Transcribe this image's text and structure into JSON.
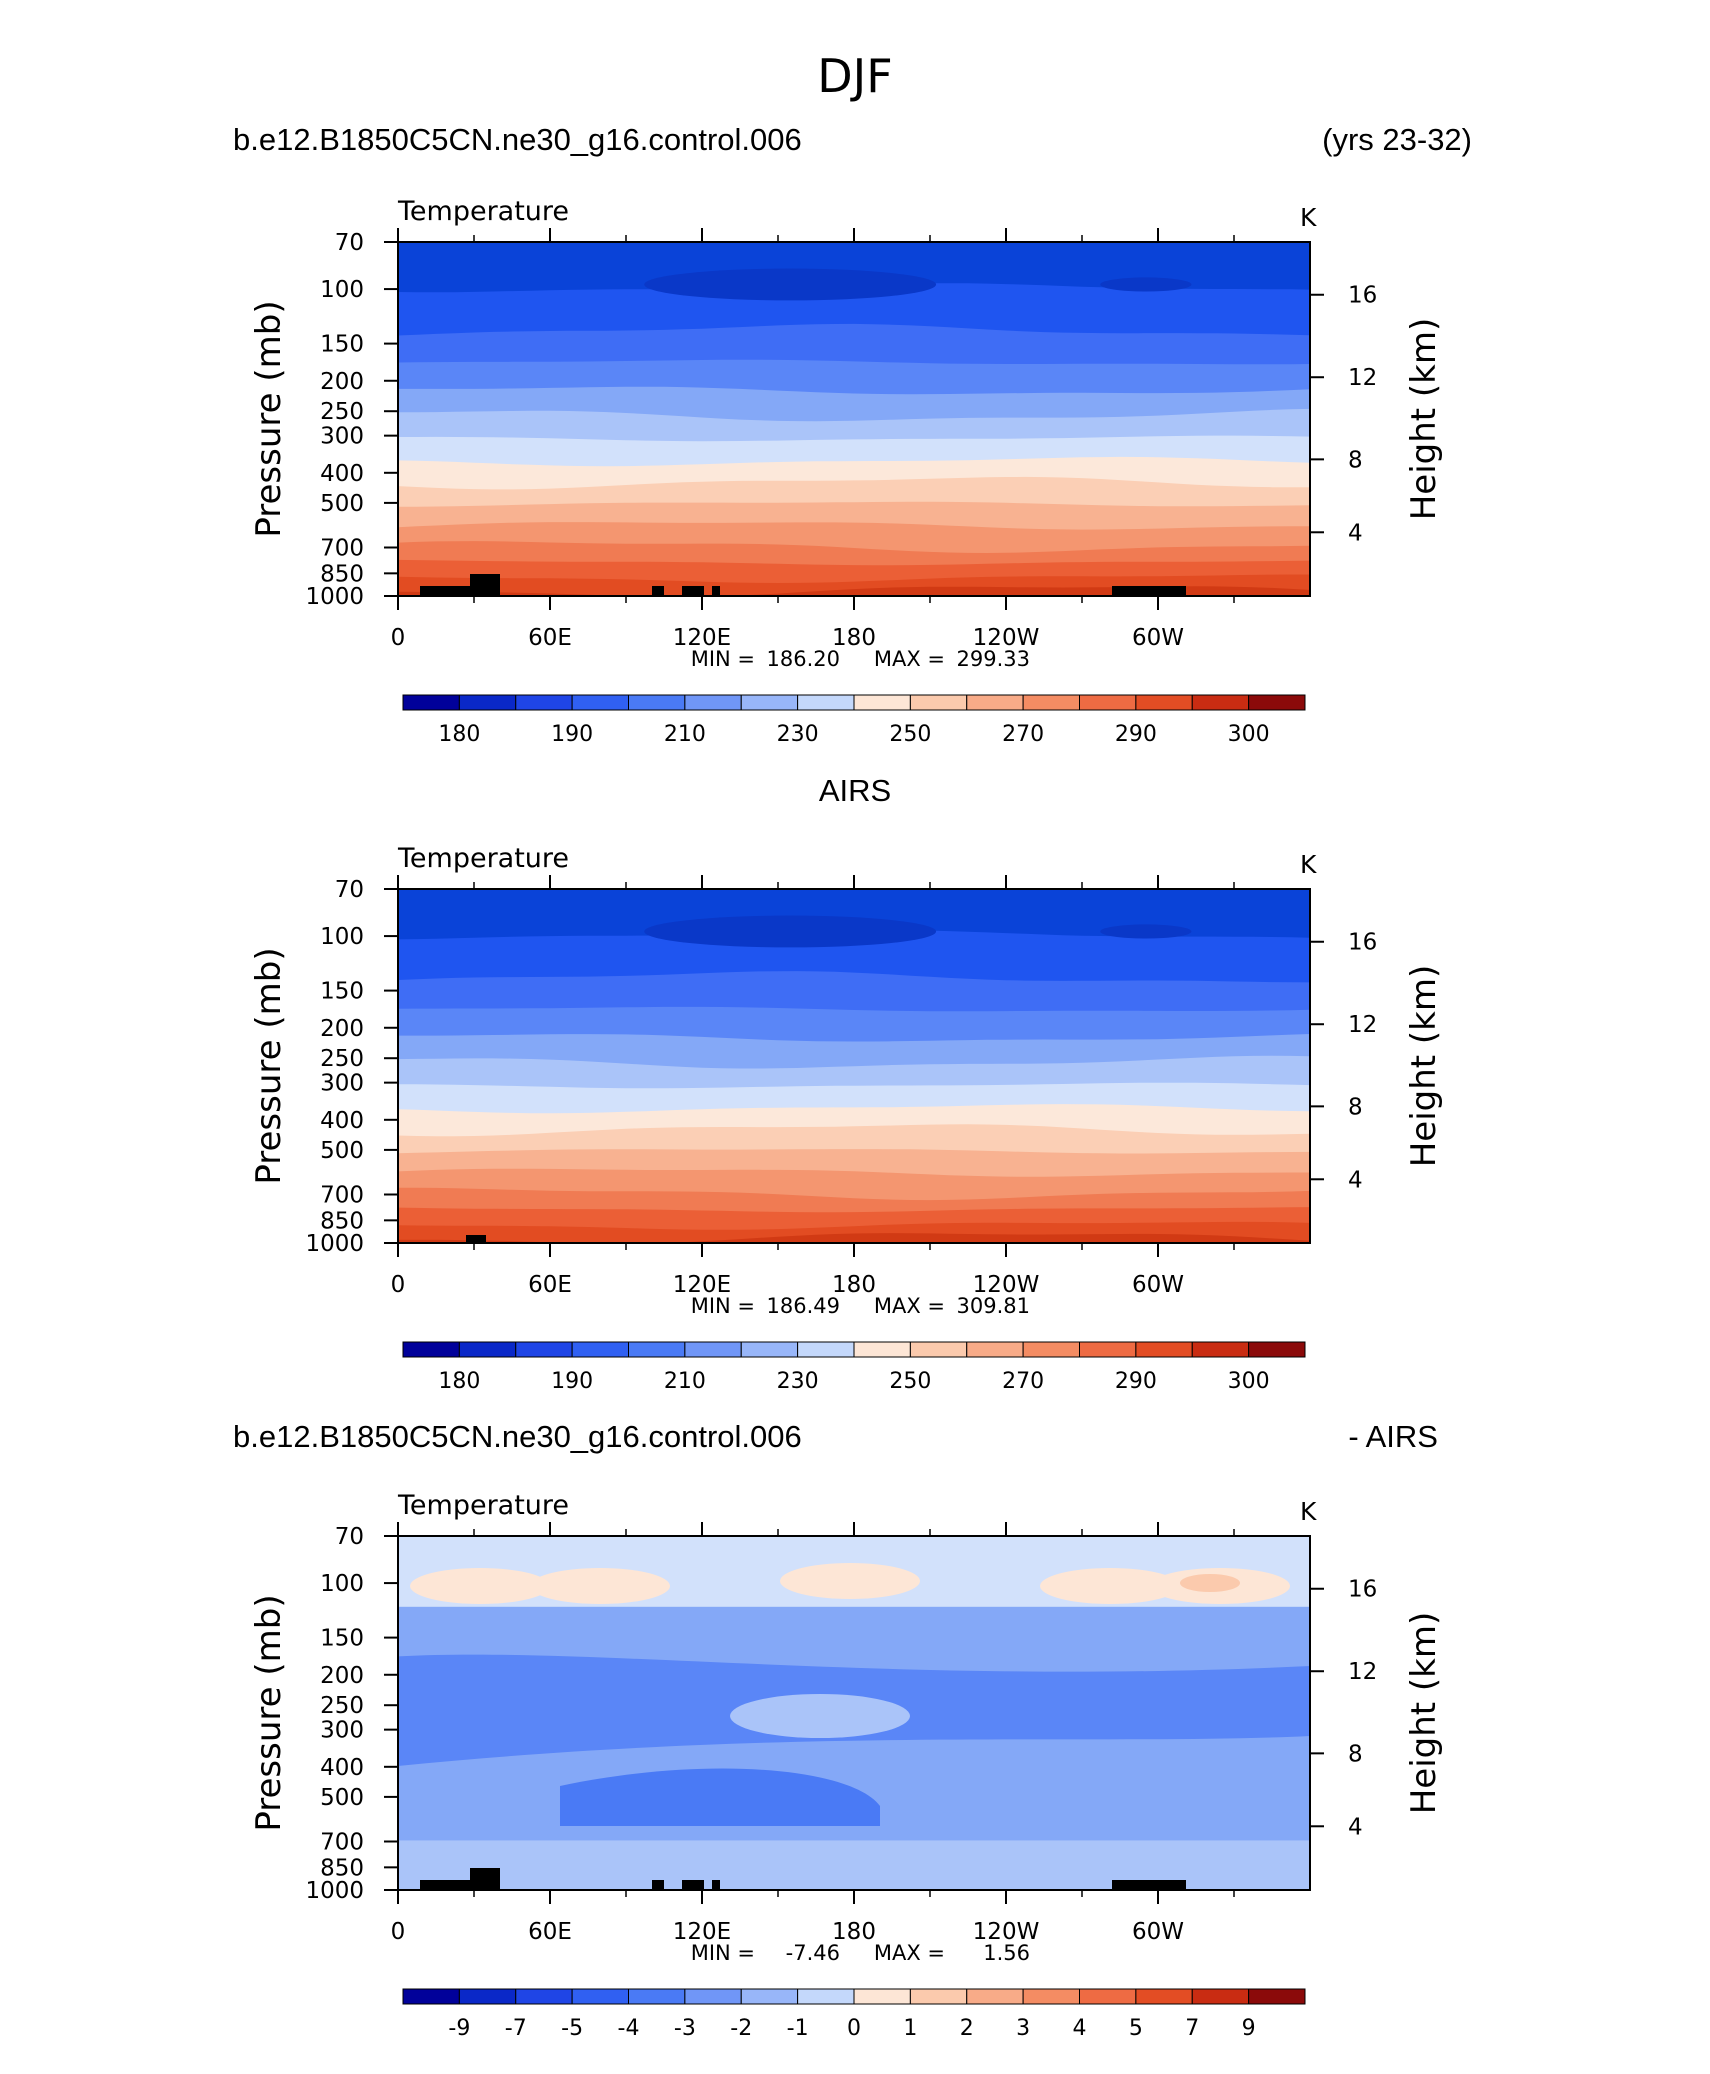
{
  "page_title": "DJF",
  "chart_data": [
    {
      "type": "heatmap",
      "title_left": "b.e12.B1850C5CN.ne30_g16.control.006",
      "title_right": "(yrs 23-32)",
      "variable": "Temperature",
      "units": "K",
      "ylabel": "Pressure (mb)",
      "ylabel_right": "Height (km)",
      "pressure_ticks": [
        "70",
        "100",
        "150",
        "200",
        "250",
        "300",
        "400",
        "500",
        "700",
        "850",
        "1000"
      ],
      "height_ticks": [
        "16",
        "12",
        "8",
        "4"
      ],
      "lon_ticks": [
        "0",
        "60E",
        "120E",
        "180",
        "120W",
        "60W"
      ],
      "min_label": "MIN =",
      "min_value": "186.20",
      "max_label": "MAX =",
      "max_value": "299.33",
      "colorbar_labels": [
        "180",
        "190",
        "210",
        "230",
        "250",
        "270",
        "290",
        "300"
      ],
      "band_colors": [
        "#0a43d8",
        "#1f55f0",
        "#3f6df5",
        "#5a86f7",
        "#84a8f7",
        "#aac4f9",
        "#d2e1fb",
        "#fce8da",
        "#fbcfb5",
        "#f8b291",
        "#f49670",
        "#f07b53",
        "#eb5f36",
        "#e24c22",
        "#d13a14"
      ],
      "terrain": true
    },
    {
      "type": "heatmap",
      "title_center": "AIRS",
      "variable": "Temperature",
      "units": "K",
      "ylabel": "Pressure (mb)",
      "ylabel_right": "Height (km)",
      "pressure_ticks": [
        "70",
        "100",
        "150",
        "200",
        "250",
        "300",
        "400",
        "500",
        "700",
        "850",
        "1000"
      ],
      "height_ticks": [
        "16",
        "12",
        "8",
        "4"
      ],
      "lon_ticks": [
        "0",
        "60E",
        "120E",
        "180",
        "120W",
        "60W"
      ],
      "min_label": "MIN =",
      "min_value": "186.49",
      "max_label": "MAX =",
      "max_value": "309.81",
      "colorbar_labels": [
        "180",
        "190",
        "210",
        "230",
        "250",
        "270",
        "290",
        "300"
      ],
      "band_colors": [
        "#0a43d8",
        "#1f55f0",
        "#3f6df5",
        "#5a86f7",
        "#84a8f7",
        "#aac4f9",
        "#d2e1fb",
        "#fce8da",
        "#fbcfb5",
        "#f8b291",
        "#f49670",
        "#f07b53",
        "#eb5f36",
        "#e24c22",
        "#d13a14",
        "#b82a10"
      ],
      "terrain": false
    },
    {
      "type": "heatmap",
      "title_left": "b.e12.B1850C5CN.ne30_g16.control.006",
      "title_right": "- AIRS",
      "variable": "Temperature",
      "units": "K",
      "ylabel": "Pressure (mb)",
      "ylabel_right": "Height (km)",
      "pressure_ticks": [
        "70",
        "100",
        "150",
        "200",
        "250",
        "300",
        "400",
        "500",
        "700",
        "850",
        "1000"
      ],
      "height_ticks": [
        "16",
        "12",
        "8",
        "4"
      ],
      "lon_ticks": [
        "0",
        "60E",
        "120E",
        "180",
        "120W",
        "60W"
      ],
      "min_label": "MIN =",
      "min_value": "-7.46",
      "max_label": "MAX =",
      "max_value": "1.56",
      "colorbar_labels": [
        "-9",
        "-7",
        "-5",
        "-4",
        "-3",
        "-2",
        "-1",
        "0",
        "1",
        "2",
        "3",
        "4",
        "5",
        "7",
        "9"
      ],
      "band_colors": [
        "#d2e1fb",
        "#aac4f9",
        "#84a8f7",
        "#5a86f7",
        "#3f6df5",
        "#84a8f7",
        "#aac4f9",
        "#d2e1fb"
      ],
      "terrain": true
    }
  ],
  "colorbar_colors": [
    "#01019a",
    "#0a28c8",
    "#1f45e6",
    "#3060f2",
    "#4a7af5",
    "#7096f7",
    "#98b6f9",
    "#c4d8fb",
    "#fde6d6",
    "#fbcaad",
    "#f8ab88",
    "#f48c63",
    "#ee6b43",
    "#e34d24",
    "#c92c12",
    "#8b0a0a"
  ]
}
